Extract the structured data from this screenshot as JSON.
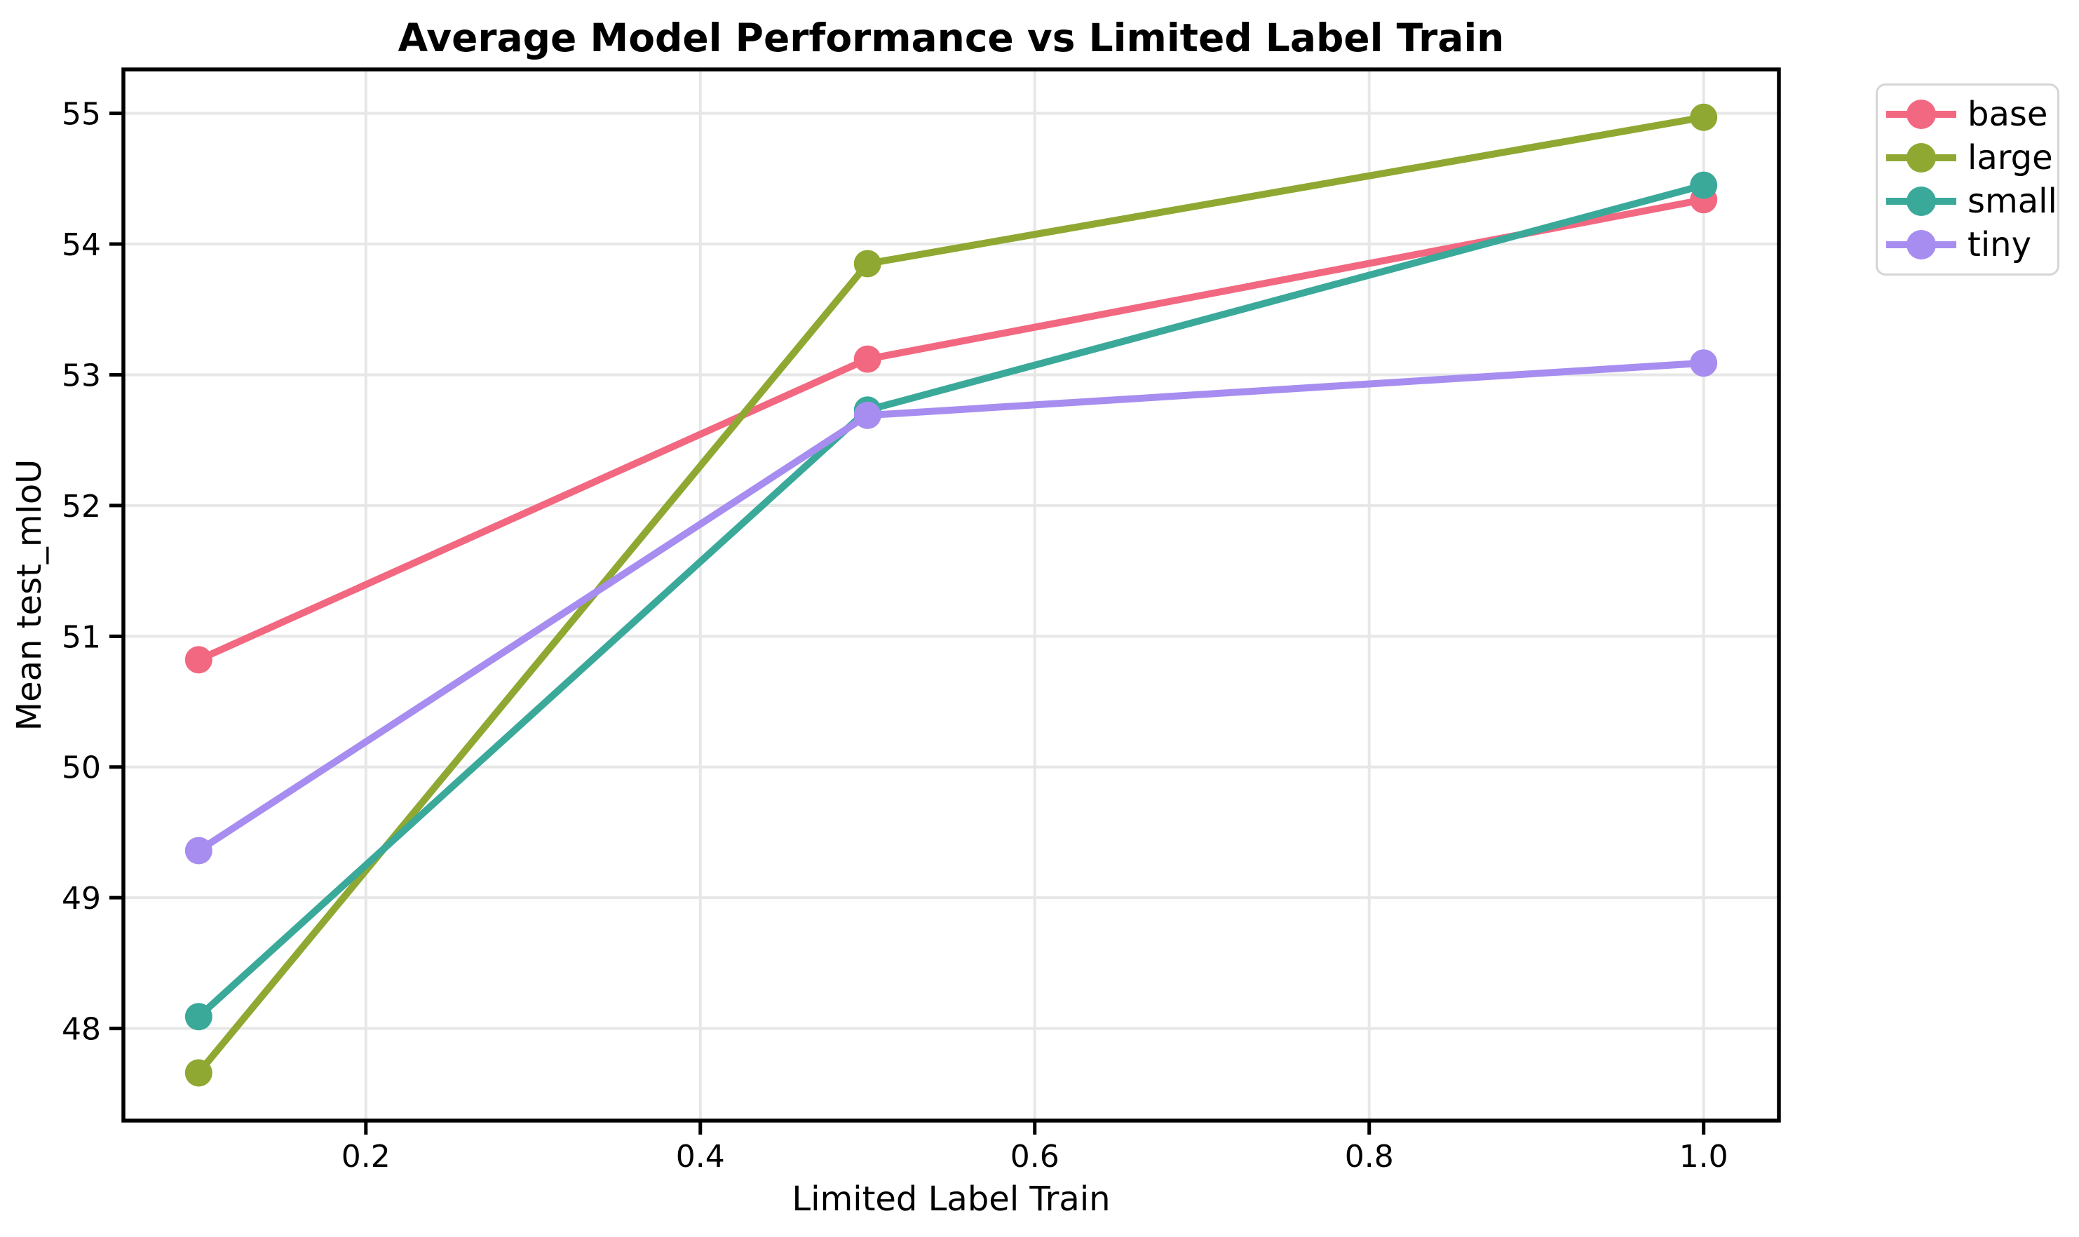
{
  "title": "Average Model Performance vs Limited Label Train",
  "chart_data": {
    "type": "line",
    "title": "Average Model Performance vs Limited Label Train",
    "xlabel": "Limited Label Train",
    "ylabel": "Mean test_mIoU",
    "x": [
      0.1,
      0.5,
      1.0
    ],
    "series": [
      {
        "name": "base",
        "color": "#f26880",
        "values": [
          50.82,
          53.12,
          54.34
        ]
      },
      {
        "name": "large",
        "color": "#8fa832",
        "values": [
          47.66,
          53.85,
          54.97
        ]
      },
      {
        "name": "small",
        "color": "#3aa99a",
        "values": [
          48.09,
          52.73,
          54.45
        ]
      },
      {
        "name": "tiny",
        "color": "#a78df0",
        "values": [
          49.36,
          52.69,
          53.09
        ]
      }
    ],
    "xlim": [
      0.055,
      1.045
    ],
    "ylim": [
      47.295,
      55.336
    ],
    "xticks": [
      0.2,
      0.4,
      0.6,
      0.8,
      1.0
    ],
    "xtick_labels": [
      "0.2",
      "0.4",
      "0.6",
      "0.8",
      "1.0"
    ],
    "yticks": [
      48,
      49,
      50,
      51,
      52,
      53,
      54,
      55
    ],
    "ytick_labels": [
      "48",
      "49",
      "50",
      "51",
      "52",
      "53",
      "54",
      "55"
    ],
    "grid": true,
    "grid_color": "#e7e7e7",
    "spine_color": "#000000",
    "text_color": "#000000",
    "background_color": "#ffffff",
    "legend_position": "upper right, outside axes",
    "legend_entries": [
      "base",
      "large",
      "small",
      "tiny"
    ]
  }
}
